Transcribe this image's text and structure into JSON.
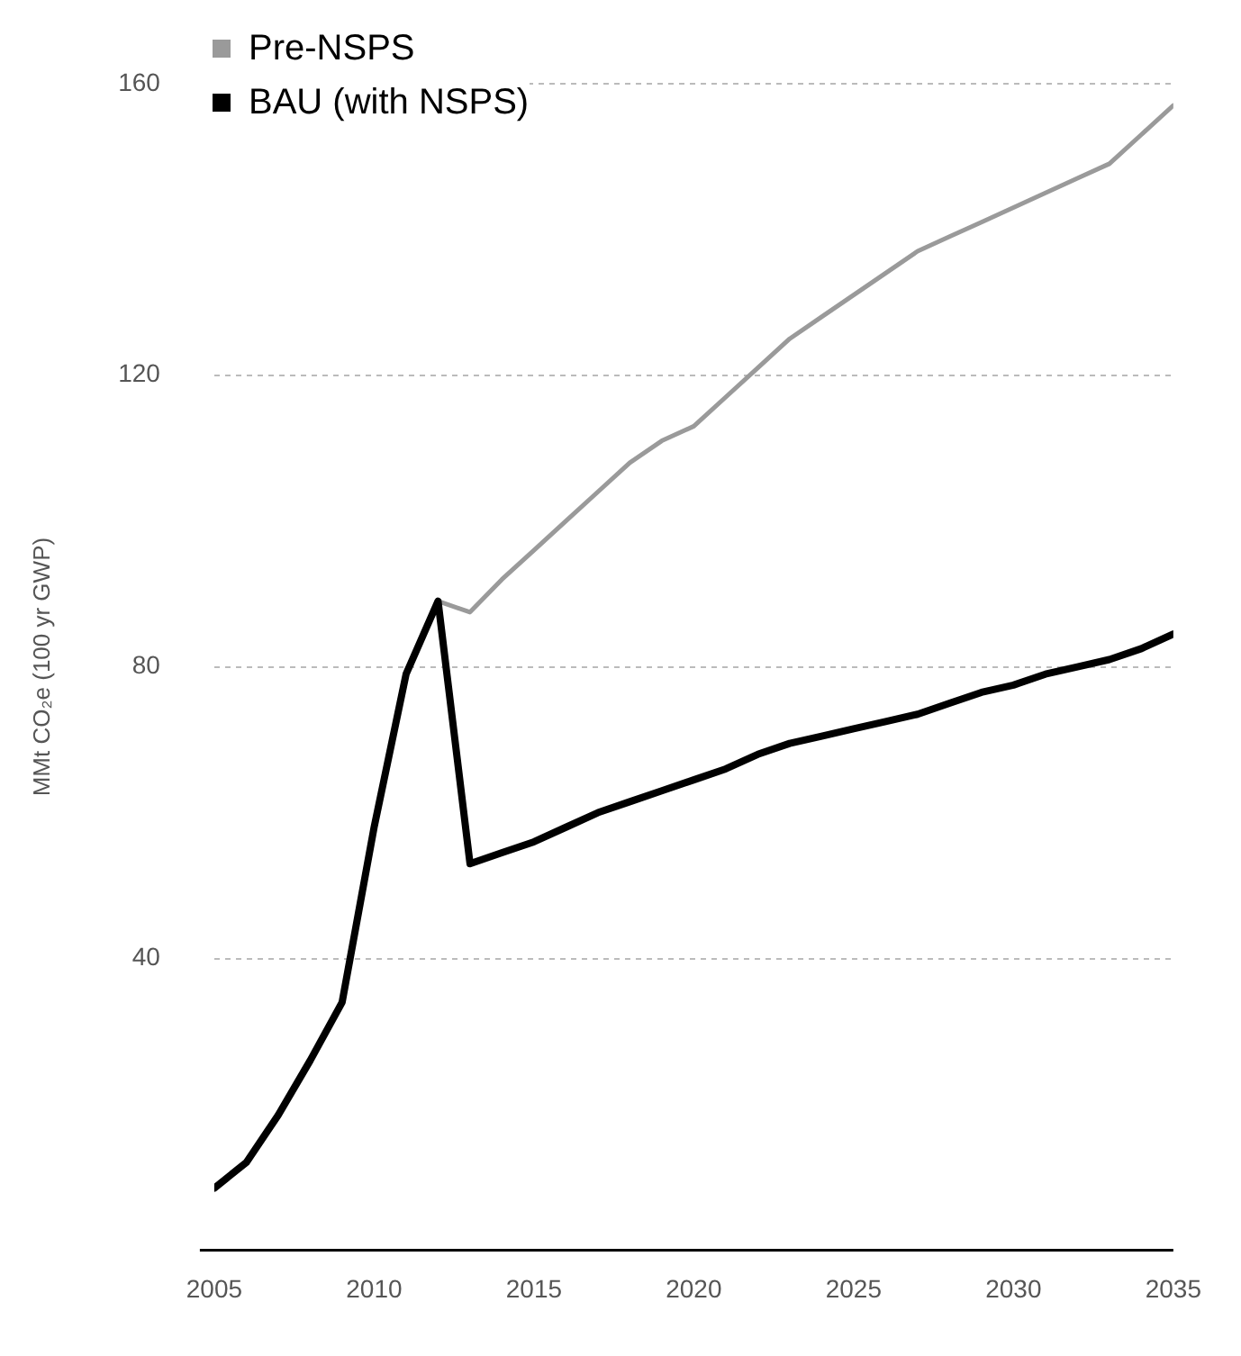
{
  "chart_data": {
    "type": "line",
    "ylabel": "MMt CO₂e (100 yr GWP)",
    "xlim": [
      2005,
      2035
    ],
    "xticks": [
      2005,
      2010,
      2015,
      2020,
      2025,
      2030,
      2035
    ],
    "ylim": [
      0,
      160
    ],
    "yticks": [
      40,
      80,
      120,
      160
    ],
    "grid": "y",
    "legend": "top left",
    "marker": "none",
    "line_style": "solid",
    "series": [
      {
        "name": "Pre-NSPS",
        "color": "#9a9a9a",
        "x": [
          2012,
          2013,
          2014,
          2015,
          2016,
          2017,
          2018,
          2019,
          2020,
          2021,
          2022,
          2023,
          2024,
          2025,
          2026,
          2027,
          2028,
          2029,
          2030,
          2031,
          2032,
          2033,
          2034,
          2035
        ],
        "values": [
          89,
          87.5,
          92,
          96,
          100,
          104,
          108,
          111,
          113,
          117,
          121,
          125,
          128,
          131,
          134,
          137,
          139,
          141,
          143,
          145,
          147,
          149,
          153,
          157
        ]
      },
      {
        "name": "BAU (with NSPS)",
        "color": "#000000",
        "x": [
          2005,
          2006,
          2007,
          2008,
          2009,
          2010,
          2011,
          2012,
          2013,
          2014,
          2015,
          2016,
          2017,
          2018,
          2019,
          2020,
          2021,
          2022,
          2023,
          2024,
          2025,
          2026,
          2027,
          2028,
          2029,
          2030,
          2031,
          2032,
          2033,
          2034,
          2035
        ],
        "values": [
          8.5,
          12,
          18.5,
          26,
          34,
          58,
          79,
          89,
          53,
          54.5,
          56,
          58,
          60,
          61.5,
          63,
          64.5,
          66,
          68,
          69.5,
          70.5,
          71.5,
          72.5,
          73.5,
          75,
          76.5,
          77.5,
          79,
          80,
          81,
          82.5,
          84.5
        ]
      }
    ]
  }
}
